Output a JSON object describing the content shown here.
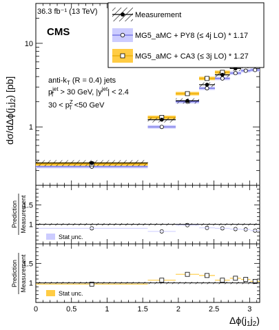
{
  "header": {
    "lumi_label": "36.3 fb⁻¹ (13 TeV)",
    "experiment": "CMS"
  },
  "legend": {
    "measurement": "Measurement",
    "mg5_py8": "MG5_aMC + PY8 (≤ 4j LO) * 1.17",
    "mg5_ca3": "MG5_aMC + CA3 (≤ 3j LO) * 1.27"
  },
  "annotation": {
    "line1": "anti-k_T (R = 0.4) jets",
    "line2": "p_T^jet > 30 GeV, |y^jet| < 2.4",
    "line3": "30 <  p_T^Z <50 GeV"
  },
  "ratio_panels": {
    "ylabel_top": "Prediction",
    "ylabel_bottom": "Measurement",
    "stat_label": "Stat unc."
  },
  "colors": {
    "py8": "#6666dd",
    "py8_band": "#ccccff",
    "ca3": "#e8a900",
    "ca3_band": "#ffcc44",
    "measurement": "#000000"
  },
  "chart_data": {
    "type": "scatter",
    "xlabel": "Δϕ(j₁j₂)",
    "ylabel": "dσ/dΔϕ(j₁j₂) [pb]",
    "xlim": [
      0,
      3.1416
    ],
    "ylim": [
      0.2,
      30
    ],
    "yscale": "log",
    "bins": [
      [
        0,
        1.571
      ],
      [
        1.571,
        1.963
      ],
      [
        1.963,
        2.291
      ],
      [
        2.291,
        2.513
      ],
      [
        2.513,
        2.723
      ],
      [
        2.723,
        2.88
      ],
      [
        2.88,
        3.011
      ],
      [
        3.011,
        3.1416
      ]
    ],
    "series": [
      {
        "name": "Measurement",
        "values": [
          0.37,
          1.22,
          2.05,
          3.2,
          4.2,
          5.0,
          5.4,
          5.7
        ],
        "errors": [
          0.03,
          0.09,
          0.15,
          0.2,
          0.28,
          0.33,
          0.36,
          0.38
        ]
      },
      {
        "name": "MG5_aMC + PY8 (≤ 4j LO) * 1.17",
        "values": [
          0.335,
          1.0,
          2.0,
          2.9,
          3.8,
          4.4,
          4.7,
          4.8
        ]
      },
      {
        "name": "MG5_aMC + CA3 (≤ 3j LO) * 1.27",
        "values": [
          0.36,
          1.3,
          2.5,
          3.8,
          4.5,
          5.6,
          5.9,
          5.9
        ]
      }
    ],
    "ratio_panel_1": {
      "ylim": [
        0.5,
        2.0
      ],
      "ratio": [
        0.9,
        0.82,
        0.98,
        0.91,
        0.9,
        0.88,
        0.87,
        0.84
      ]
    },
    "ratio_panel_2": {
      "ylim": [
        0.5,
        2.0
      ],
      "ratio": [
        0.97,
        1.07,
        1.22,
        1.19,
        1.07,
        1.12,
        1.09,
        1.04
      ]
    },
    "xticks": [
      0,
      0.5,
      1,
      1.5,
      2,
      2.5,
      3
    ],
    "yticks_main": [
      1,
      10
    ],
    "yticks_ratio": [
      1,
      1.5
    ]
  }
}
